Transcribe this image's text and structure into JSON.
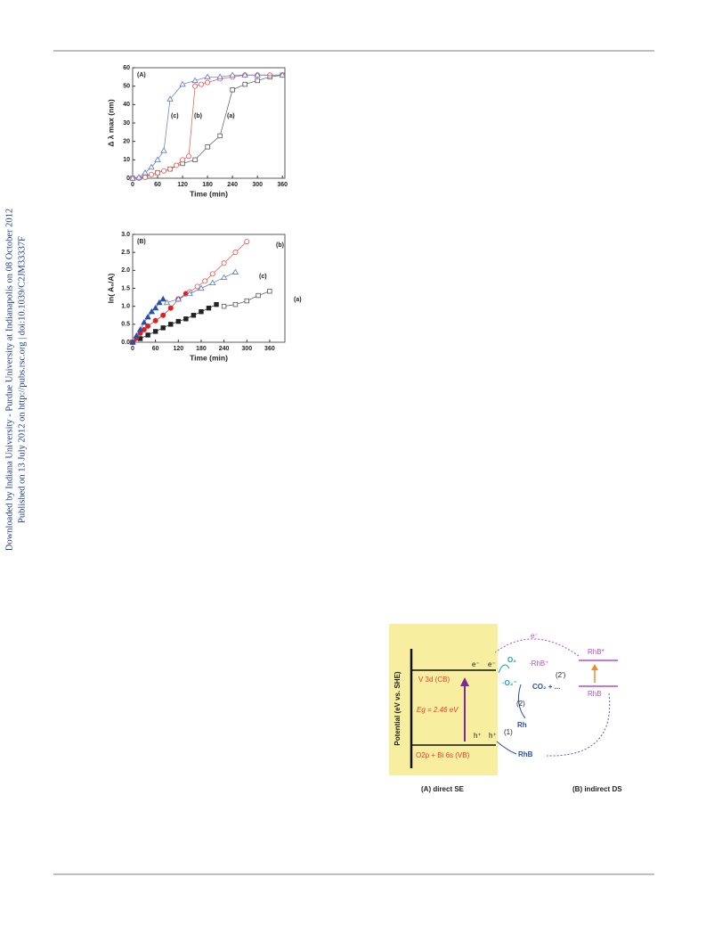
{
  "sidebar": {
    "line1": "Downloaded by Indiana University - Purdue University at Indianapolis on 08 October 2012",
    "line2": "Published on 13 July 2012 on http://pubs.rsc.org | doi:10.1039/C2JM33337F"
  },
  "chart_data": [
    {
      "type": "line",
      "panel_label": "(A)",
      "x_label": "Time (min)",
      "y_label": "Δ λ max (nm)",
      "xlim": [
        0,
        366
      ],
      "xticks": [
        0,
        60,
        120,
        180,
        240,
        300,
        360
      ],
      "ylim": [
        0,
        60
      ],
      "yticks": [
        0,
        10,
        20,
        30,
        40,
        50,
        60
      ],
      "annotations": [
        "(a)",
        "(b)",
        "(c)"
      ],
      "series": [
        {
          "color": "#555555",
          "marker": "square",
          "filled": false,
          "x": [
            0,
            30,
            60,
            90,
            120,
            150,
            180,
            210,
            240,
            270,
            300,
            330,
            360
          ],
          "values": [
            0,
            1,
            3,
            5,
            8,
            10,
            17,
            23,
            48,
            51,
            53,
            55,
            56
          ]
        },
        {
          "color": "#e8534a",
          "marker": "circle",
          "filled": false,
          "x": [
            0,
            15,
            30,
            45,
            60,
            75,
            90,
            105,
            120,
            135,
            150,
            165,
            180,
            210,
            240,
            270,
            300,
            330,
            360
          ],
          "values": [
            0,
            0,
            0.5,
            2,
            3,
            4,
            5,
            7,
            10,
            12,
            50,
            51,
            52,
            54,
            55,
            56,
            56,
            56,
            56
          ]
        },
        {
          "color": "#5a78c8",
          "marker": "triangle",
          "filled": false,
          "x": [
            0,
            15,
            30,
            45,
            60,
            75,
            90,
            120,
            150,
            180,
            210,
            240,
            270,
            300,
            360
          ],
          "values": [
            0,
            0.5,
            3,
            6,
            10,
            15,
            43,
            51,
            53,
            55,
            55,
            56,
            56,
            56,
            56
          ]
        }
      ]
    },
    {
      "type": "scatter",
      "panel_label": "(B)",
      "x_label": "Time (min)",
      "y_label": "ln( A₀/A)",
      "xlim": [
        0,
        400
      ],
      "xticks": [
        0,
        60,
        120,
        180,
        240,
        300,
        360
      ],
      "ylim": [
        0,
        3
      ],
      "yticks": [
        {
          "value": 0,
          "label": "0.0"
        },
        0.5,
        {
          "value": 1,
          "label": "1.0"
        },
        1.5,
        {
          "value": 2,
          "label": "2.0"
        },
        2.5,
        {
          "value": 3,
          "label": "3.0"
        }
      ],
      "annotations": [
        "(a)",
        "(b)",
        "(c)"
      ],
      "series": [
        {
          "color": "#222222",
          "marker": "square",
          "filled": true,
          "x": [
            0,
            20,
            40,
            60,
            80,
            100,
            120,
            140,
            160,
            180,
            200,
            220
          ],
          "values": [
            0,
            0.1,
            0.2,
            0.3,
            0.4,
            0.5,
            0.58,
            0.65,
            0.75,
            0.85,
            0.95,
            1.05
          ]
        },
        {
          "color": "#555555",
          "marker": "square",
          "filled": false,
          "x": [
            240,
            270,
            300,
            330,
            360
          ],
          "values": [
            1,
            1.05,
            1.15,
            1.3,
            1.42
          ]
        },
        {
          "color": "#e02020",
          "marker": "circle",
          "filled": true,
          "x": [
            0,
            10,
            20,
            30,
            40,
            60,
            80,
            100,
            120,
            140
          ],
          "values": [
            0,
            0.12,
            0.25,
            0.35,
            0.45,
            0.6,
            0.75,
            0.95,
            1.2,
            1.35
          ]
        },
        {
          "color": "#e8534a",
          "marker": "circle",
          "filled": false,
          "x": [
            150,
            170,
            190,
            210,
            240,
            270,
            300
          ],
          "values": [
            1.4,
            1.55,
            1.7,
            1.9,
            2.2,
            2.5,
            2.8
          ]
        },
        {
          "color": "#2a4fa8",
          "marker": "triangle",
          "filled": true,
          "x": [
            0,
            10,
            20,
            30,
            40,
            50,
            60,
            70,
            80
          ],
          "values": [
            0,
            0.18,
            0.35,
            0.55,
            0.7,
            0.85,
            0.95,
            1.1,
            1.2
          ]
        },
        {
          "color": "#5a78c8",
          "marker": "triangle",
          "filled": false,
          "x": [
            90,
            120,
            150,
            180,
            210,
            240,
            270
          ],
          "values": [
            1.1,
            1.2,
            1.35,
            1.5,
            1.65,
            1.8,
            1.95
          ]
        }
      ]
    }
  ],
  "diagram": {
    "axis_label": "Potential (eV vs. SHE)",
    "cb": "V 3d (CB)",
    "vb": "O2p + Bi 6s (VB)",
    "gap": "Eg = 2.46 eV",
    "e1": "e⁻",
    "e2": "e⁻",
    "h1": "h⁺",
    "h2": "h⁺",
    "o2": "O₂",
    "superoxide": "·O₂⁻",
    "products": "CO₂ + ...",
    "step2": "(2)",
    "step2b": "(2')",
    "rh": "Rh",
    "step1": "(1)",
    "rhb_a": "RhB",
    "rhb_plus": "·RhB⁺",
    "e_transfer": "e⁻",
    "rhb_star": "RhB*",
    "rhb_b": "RhB",
    "caption_a": "(A) direct SE",
    "caption_b": "(B) indirect DS"
  }
}
